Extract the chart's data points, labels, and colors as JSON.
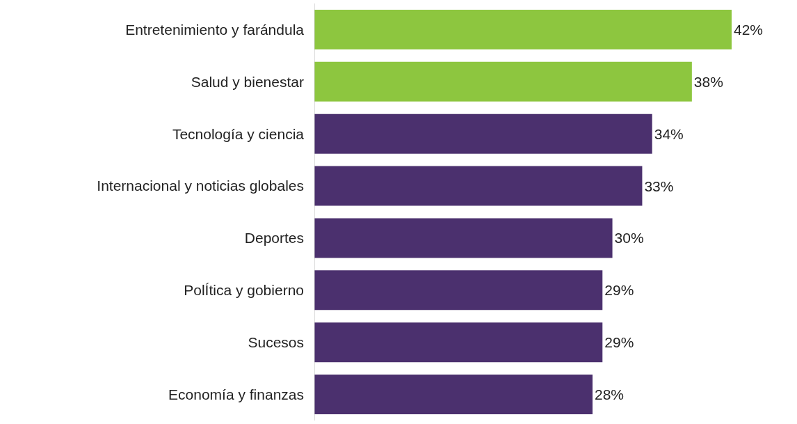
{
  "chart_data": {
    "type": "bar",
    "orientation": "horizontal",
    "categories": [
      "Entretenimiento y farándula",
      "Salud y bienestar",
      "Tecnología y ciencia",
      "Internacional y noticias globales",
      "Deportes",
      "PolÍtica y gobierno",
      "Sucesos",
      "Economía y finanzas"
    ],
    "values": [
      42,
      38,
      34,
      33,
      30,
      29,
      29,
      28
    ],
    "colors": [
      "#8dc63f",
      "#8dc63f",
      "#4b306e",
      "#4b306e",
      "#4b306e",
      "#4b306e",
      "#4b306e",
      "#4b306e"
    ],
    "value_labels": [
      "42%",
      "38%",
      "34%",
      "33%",
      "30%",
      "29%",
      "29%",
      "28%"
    ],
    "tick_labels": "y"
  }
}
